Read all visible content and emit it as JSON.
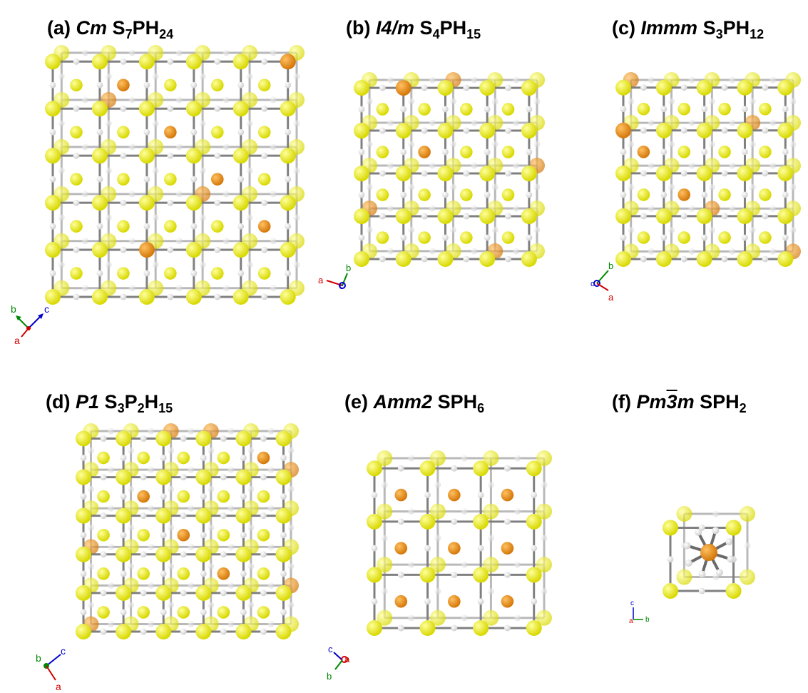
{
  "colors": {
    "sulfur": "#d8d800",
    "phosphorus": "#d4780a",
    "hydrogen": "#e6e6e6",
    "bond": "#808080",
    "axis_a": "#d00000",
    "axis_b": "#008800",
    "axis_c": "#0000cc"
  },
  "panels": [
    {
      "label": "(a)",
      "group": "Cm",
      "formula": [
        {
          "t": "S"
        },
        {
          "s": "7"
        },
        {
          "t": "PH"
        },
        {
          "s": "24"
        }
      ],
      "grid": [
        5,
        5
      ],
      "axes": [
        "b",
        "c",
        "a"
      ]
    },
    {
      "label": "(b)",
      "group": "I4/m",
      "formula": [
        {
          "t": "S"
        },
        {
          "s": "4"
        },
        {
          "t": "PH"
        },
        {
          "s": "15"
        }
      ],
      "grid": [
        4,
        4
      ],
      "axes": [
        "a",
        "b",
        "c"
      ]
    },
    {
      "label": "(c)",
      "group": "Immm",
      "formula": [
        {
          "t": "S"
        },
        {
          "s": "3"
        },
        {
          "t": "PH"
        },
        {
          "s": "12"
        }
      ],
      "grid": [
        4,
        4
      ],
      "axes": [
        "b",
        "c",
        "a"
      ]
    },
    {
      "label": "(d)",
      "group": "P1",
      "formula": [
        {
          "t": "S"
        },
        {
          "s": "3"
        },
        {
          "t": "P"
        },
        {
          "s": "2"
        },
        {
          "t": "H"
        },
        {
          "s": "15"
        }
      ],
      "grid": [
        5,
        5
      ],
      "axes": [
        "b",
        "c",
        "a"
      ]
    },
    {
      "label": "(e)",
      "group": "Amm2",
      "formula": [
        {
          "t": "SPH"
        },
        {
          "s": "6"
        }
      ],
      "grid": [
        3,
        3
      ],
      "axes": [
        "c",
        "a",
        "b"
      ]
    },
    {
      "label": "(f)",
      "group": "Pm3m",
      "formula": [
        {
          "t": "SPH"
        },
        {
          "s": "2"
        }
      ],
      "grid": [
        1,
        1
      ],
      "axes": [
        "c",
        "b",
        "a"
      ]
    }
  ]
}
